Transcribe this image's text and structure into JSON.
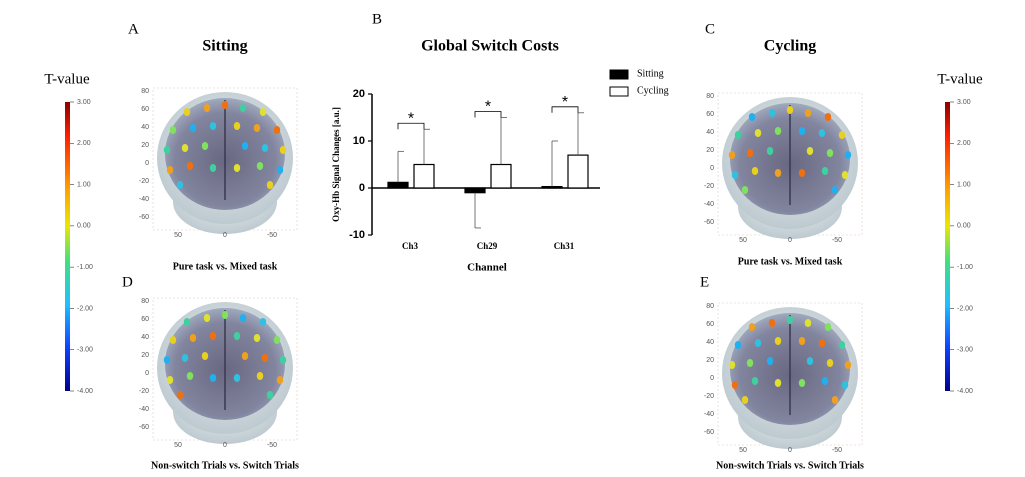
{
  "chart_data": {
    "type": "bar",
    "panel_label": "B",
    "title": "Global Switch Costs",
    "y_label": "Oxy-Hb Signal Changes [a.u.]",
    "x_label": "Channel",
    "categories": [
      "Ch3",
      "Ch29",
      "Ch31"
    ],
    "series": [
      {
        "name": "Sitting",
        "color": "#000000",
        "values": [
          1.2,
          -1,
          0.3
        ],
        "errors": [
          6.6,
          7.5,
          9.7
        ]
      },
      {
        "name": "Cycling",
        "color": "#ffffff",
        "values": [
          5,
          5,
          7
        ],
        "errors": [
          7.5,
          10,
          9
        ]
      }
    ],
    "significance": [
      "*",
      "*",
      "*"
    ],
    "ylim": [
      -10,
      20
    ],
    "yticks": [
      -10,
      0,
      10,
      20
    ],
    "legend": "upper right"
  },
  "panels": [
    {
      "letter": "A",
      "title": "Sitting",
      "caption": "Pure task vs. Mixed task"
    },
    {
      "letter": "D",
      "caption": "Non-switch Trials vs. Switch Trials"
    },
    {
      "letter": "C",
      "title": "Cycling",
      "caption": "Pure task vs. Mixed task"
    },
    {
      "letter": "E",
      "caption": "Non-switch Trials vs. Switch Trials"
    }
  ],
  "brain_axes": {
    "yticks": [
      80,
      60,
      40,
      20,
      0,
      -20,
      -40,
      -60
    ],
    "xticks": [
      50,
      0,
      -50
    ]
  },
  "colorbars": [
    {
      "title": "T-value",
      "ticks": [
        {
          "value": 3,
          "label": "3.00"
        },
        {
          "value": 2,
          "label": "2.00"
        },
        {
          "value": 1,
          "label": "1.00"
        },
        {
          "value": 0,
          "label": "0.00"
        },
        {
          "value": -1,
          "label": "-1.00"
        },
        {
          "value": -2,
          "label": "-2.00"
        },
        {
          "value": -3,
          "label": "-3.00"
        },
        {
          "value": -4,
          "label": "-4.00"
        }
      ]
    },
    {
      "title": "T-value",
      "ticks": [
        {
          "value": 3,
          "label": "3.00"
        },
        {
          "value": 2,
          "label": "2.00"
        },
        {
          "value": 1,
          "label": "1.00"
        },
        {
          "value": 0,
          "label": "0.00"
        },
        {
          "value": -1,
          "label": "-1.00"
        },
        {
          "value": -2,
          "label": "-2.00"
        },
        {
          "value": -3,
          "label": "-3.00"
        },
        {
          "value": -4,
          "label": "-4.00"
        }
      ]
    }
  ]
}
